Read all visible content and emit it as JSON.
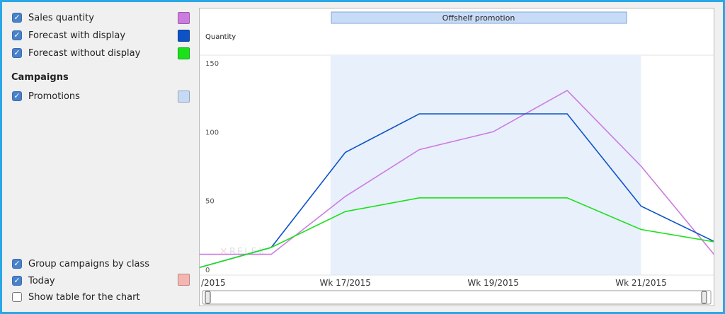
{
  "legend": {
    "series": [
      {
        "label": "Sales quantity",
        "checked": true,
        "color": "#cc7be0"
      },
      {
        "label": "Forecast with display",
        "checked": true,
        "color": "#0d53c7"
      },
      {
        "label": "Forecast without display",
        "checked": true,
        "color": "#1be11b"
      }
    ],
    "campaigns_heading": "Campaigns",
    "campaigns": [
      {
        "label": "Promotions",
        "checked": true,
        "color": "#c5daf5"
      }
    ],
    "options": [
      {
        "label": "Group campaigns by class",
        "checked": true
      },
      {
        "label": "Today",
        "checked": true,
        "color": "#f5b5b0"
      },
      {
        "label": "Show table for the chart",
        "checked": false
      }
    ]
  },
  "watermark": "RELEX",
  "chart_data": {
    "type": "line",
    "ylabel": "Quantity",
    "ylim": [
      0,
      150
    ],
    "yticks": [
      0,
      50,
      100,
      150
    ],
    "x_tick_labels": [
      "/2015",
      "Wk 17/2015",
      "Wk 19/2015",
      "Wk 21/2015"
    ],
    "x_tick_positions": [
      15,
      17,
      19,
      21
    ],
    "xlim": [
      15.05,
      22.0
    ],
    "campaign": {
      "label": "Offshelf promotion",
      "start": 16.8,
      "end": 21.0
    },
    "series": [
      {
        "name": "Sales quantity",
        "color": "#cc7be0",
        "x": [
          15,
          16,
          17,
          18,
          19,
          20,
          21,
          22
        ],
        "y": [
          11,
          11,
          53,
          87,
          100,
          130,
          75,
          10
        ]
      },
      {
        "name": "Forecast with display",
        "color": "#0d53c7",
        "x": [
          15,
          16,
          17,
          18,
          19,
          20,
          21,
          22
        ],
        "y": [
          1,
          16,
          85,
          113,
          113,
          113,
          46,
          20
        ]
      },
      {
        "name": "Forecast without display",
        "color": "#1be11b",
        "x": [
          15,
          16,
          17,
          18,
          19,
          20,
          21,
          22
        ],
        "y": [
          1,
          16,
          42,
          52,
          52,
          52,
          29,
          20
        ]
      }
    ]
  }
}
